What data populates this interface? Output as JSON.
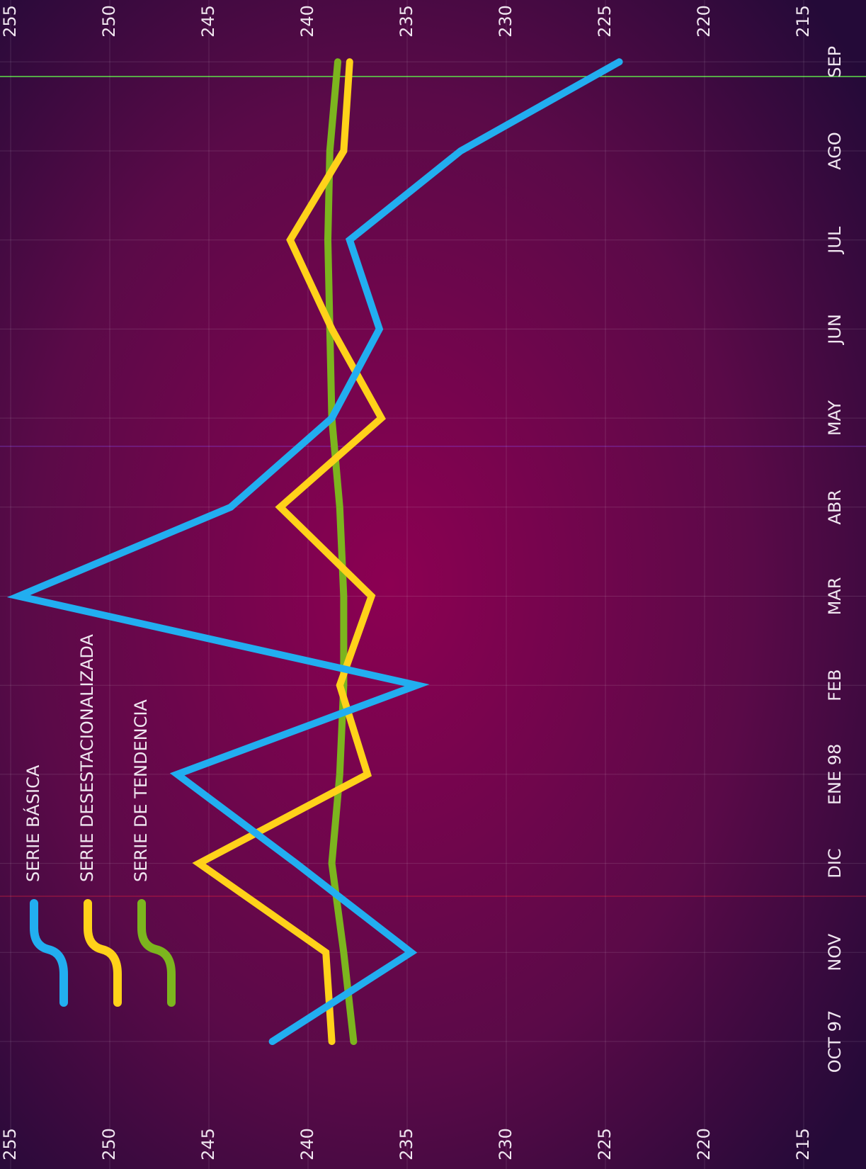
{
  "chart_data": {
    "type": "line",
    "categories": [
      "OCT 97",
      "NOV",
      "DIC",
      "ENE 98",
      "FEB",
      "MAR",
      "ABR",
      "MAY",
      "JUN",
      "JUL",
      "AGO",
      "SEP"
    ],
    "series": [
      {
        "name": "SERIE BÁSICA",
        "color": "#22aef0",
        "values": [
          241.8,
          234.8,
          240.6,
          246.6,
          234.5,
          254.6,
          243.9,
          238.8,
          236.4,
          237.9,
          232.3,
          224.3
        ]
      },
      {
        "name": "SERIE DESESTACIONALIZADA",
        "color": "#ffd21a",
        "values": [
          238.8,
          239.1,
          245.5,
          237.0,
          238.4,
          236.8,
          241.4,
          236.3,
          238.8,
          240.9,
          238.2,
          237.9
        ]
      },
      {
        "name": "SERIE DE TENDENCIA",
        "color": "#7cb51e",
        "values": [
          237.7,
          238.2,
          238.8,
          238.4,
          238.2,
          238.2,
          238.4,
          238.8,
          238.9,
          239.0,
          238.9,
          238.5
        ]
      }
    ],
    "ylim": [
      215,
      255
    ],
    "yticks": [
      215,
      220,
      225,
      230,
      235,
      240,
      245,
      250,
      255
    ],
    "grid": true
  }
}
